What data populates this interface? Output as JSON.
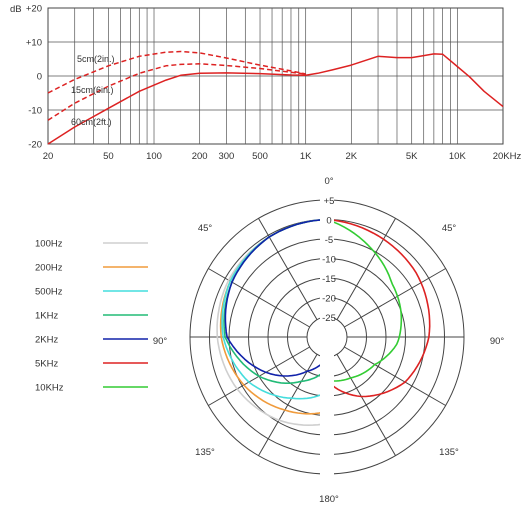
{
  "chart_data": [
    {
      "type": "line",
      "x_scale": "log",
      "xlim": [
        20,
        20000
      ],
      "ylim": [
        -20,
        20
      ],
      "ylabel": "dB",
      "grid": true,
      "y_ticks": [
        {
          "value": 20,
          "label": "+20"
        },
        {
          "value": 10,
          "label": "+10"
        },
        {
          "value": 0,
          "label": "0"
        },
        {
          "value": -10,
          "label": "-10"
        },
        {
          "value": -20,
          "label": "-20"
        }
      ],
      "x_ticks": [
        {
          "value": 20,
          "label": "20"
        },
        {
          "value": 50,
          "label": "50"
        },
        {
          "value": 100,
          "label": "100"
        },
        {
          "value": 200,
          "label": "200"
        },
        {
          "value": 300,
          "label": "300"
        },
        {
          "value": 500,
          "label": "500"
        },
        {
          "value": 1000,
          "label": "1K"
        },
        {
          "value": 2000,
          "label": "2K"
        },
        {
          "value": 5000,
          "label": "5K"
        },
        {
          "value": 10000,
          "label": "10K"
        },
        {
          "value": 20000,
          "label": "20KHz"
        }
      ],
      "series": [
        {
          "name": "5cm(2in.)",
          "color": "#dd2222",
          "dash": true,
          "points": [
            [
              20,
              -5
            ],
            [
              30,
              -1
            ],
            [
              50,
              3
            ],
            [
              80,
              5.8
            ],
            [
              120,
              7
            ],
            [
              150,
              7.2
            ],
            [
              200,
              6.8
            ],
            [
              300,
              5.3
            ],
            [
              500,
              3.2
            ],
            [
              800,
              1.5
            ],
            [
              1000,
              0.6
            ]
          ]
        },
        {
          "name": "15cm(6in.)",
          "color": "#dd2222",
          "dash": true,
          "points": [
            [
              20,
              -13
            ],
            [
              30,
              -8
            ],
            [
              50,
              -3
            ],
            [
              80,
              0.8
            ],
            [
              120,
              3
            ],
            [
              150,
              3.4
            ],
            [
              200,
              3.6
            ],
            [
              300,
              3.1
            ],
            [
              500,
              2.2
            ],
            [
              800,
              1.1
            ],
            [
              1000,
              0.6
            ]
          ]
        },
        {
          "name": "60cm(2ft.)",
          "color": "#dd2222",
          "dash": false,
          "points": [
            [
              20,
              -20
            ],
            [
              30,
              -15
            ],
            [
              50,
              -9.5
            ],
            [
              80,
              -4.5
            ],
            [
              120,
              -1.2
            ],
            [
              150,
              0.2
            ],
            [
              200,
              0.8
            ],
            [
              300,
              0.9
            ],
            [
              500,
              0.7
            ],
            [
              800,
              0.3
            ],
            [
              1000,
              0.2
            ],
            [
              1200,
              0.8
            ],
            [
              1500,
              1.8
            ],
            [
              2000,
              3.2
            ],
            [
              3000,
              5.8
            ],
            [
              4000,
              5.4
            ],
            [
              5000,
              5.4
            ],
            [
              6000,
              6
            ],
            [
              7000,
              6.5
            ],
            [
              8000,
              6.4
            ],
            [
              9000,
              4.5
            ],
            [
              10000,
              2.8
            ],
            [
              12000,
              -0.2
            ],
            [
              15000,
              -4.5
            ],
            [
              20000,
              -9
            ]
          ]
        }
      ]
    },
    {
      "type": "polar",
      "r_range": [
        -25,
        5
      ],
      "r_ticks": [
        {
          "value": 5,
          "label": "+5"
        },
        {
          "value": 0,
          "label": "0"
        },
        {
          "value": -5,
          "label": "-5"
        },
        {
          "value": -10,
          "label": "-10"
        },
        {
          "value": -15,
          "label": "-15"
        },
        {
          "value": -20,
          "label": "-20"
        },
        {
          "value": -25,
          "label": "-25"
        }
      ],
      "angle_labels": [
        "0°",
        "45°",
        "45°",
        "90°",
        "90°",
        "135°",
        "135°",
        "180°"
      ],
      "series": [
        {
          "name": "100Hz",
          "color": "#cfcfcf",
          "side": "left",
          "points": [
            [
              0,
              0
            ],
            [
              30,
              -0.5
            ],
            [
              60,
              -1
            ],
            [
              90,
              -2
            ],
            [
              120,
              -3.5
            ],
            [
              150,
              -5.5
            ],
            [
              180,
              -8
            ]
          ]
        },
        {
          "name": "200Hz",
          "color": "#f09b3c",
          "side": "left",
          "points": [
            [
              0,
              0
            ],
            [
              30,
              -0.5
            ],
            [
              60,
              -1.5
            ],
            [
              90,
              -3
            ],
            [
              120,
              -5.5
            ],
            [
              150,
              -8.5
            ],
            [
              180,
              -11
            ]
          ]
        },
        {
          "name": "500Hz",
          "color": "#44dddd",
          "side": "left",
          "points": [
            [
              0,
              0
            ],
            [
              30,
              -0.5
            ],
            [
              60,
              -1.5
            ],
            [
              90,
              -3.5
            ],
            [
              120,
              -7
            ],
            [
              150,
              -12
            ],
            [
              180,
              -16
            ]
          ]
        },
        {
          "name": "1KHz",
          "color": "#22bb77",
          "side": "left",
          "points": [
            [
              0,
              0
            ],
            [
              30,
              -0.5
            ],
            [
              60,
              -2
            ],
            [
              90,
              -4
            ],
            [
              120,
              -10
            ],
            [
              150,
              -17
            ],
            [
              180,
              -22
            ]
          ]
        },
        {
          "name": "2KHz",
          "color": "#1122aa",
          "side": "left",
          "points": [
            [
              0,
              0
            ],
            [
              30,
              -0.5
            ],
            [
              60,
              -2
            ],
            [
              90,
              -4.5
            ],
            [
              120,
              -12
            ],
            [
              150,
              -20
            ],
            [
              180,
              -25
            ]
          ]
        },
        {
          "name": "5KHz",
          "color": "#dd2222",
          "side": "right",
          "points": [
            [
              0,
              0
            ],
            [
              25,
              -1
            ],
            [
              55,
              -2
            ],
            [
              90,
              -4
            ],
            [
              120,
              -7
            ],
            [
              150,
              -12.5
            ],
            [
              180,
              -19
            ]
          ]
        },
        {
          "name": "10KHz",
          "color": "#33cc33",
          "side": "right",
          "points": [
            [
              0,
              0
            ],
            [
              25,
              -4.5
            ],
            [
              50,
              -8.5
            ],
            [
              70,
              -10
            ],
            [
              95,
              -12
            ],
            [
              120,
              -16
            ],
            [
              150,
              -18
            ],
            [
              180,
              -19
            ]
          ]
        }
      ]
    }
  ]
}
